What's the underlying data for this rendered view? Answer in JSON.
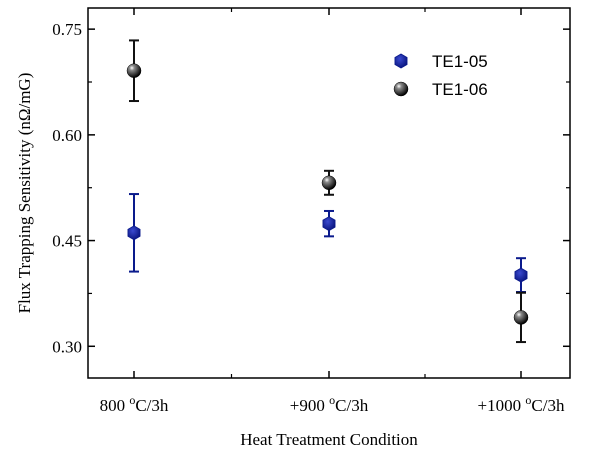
{
  "chart_data": {
    "type": "scatter",
    "title": "",
    "xlabel": "Heat Treatment Condition",
    "ylabel": "Flux Trapping Sensitivity (nΩ/mG)",
    "categories": [
      {
        "base": "800 ",
        "sup": "o",
        "rest": "C/3h"
      },
      {
        "base": "+900 ",
        "sup": "o",
        "rest": "C/3h"
      },
      {
        "base": "+1000 ",
        "sup": "o",
        "rest": "C/3h"
      }
    ],
    "ylim": [
      0.255,
      0.78
    ],
    "yticks": [
      0.3,
      0.45,
      0.6,
      0.75
    ],
    "ytick_labels": [
      "0.30",
      "0.45",
      "0.60",
      "0.75"
    ],
    "grid": false,
    "legend_position": "top-right",
    "series": [
      {
        "name": "TE1-05",
        "marker": "hexagon",
        "color": "#0a1a8c",
        "values": [
          0.461,
          0.474,
          0.401
        ],
        "errors": [
          0.055,
          0.018,
          0.024
        ]
      },
      {
        "name": "TE1-06",
        "marker": "sphere",
        "color": "#111111",
        "values": [
          0.691,
          0.532,
          0.341
        ],
        "errors": [
          0.043,
          0.017,
          0.035
        ]
      }
    ]
  }
}
